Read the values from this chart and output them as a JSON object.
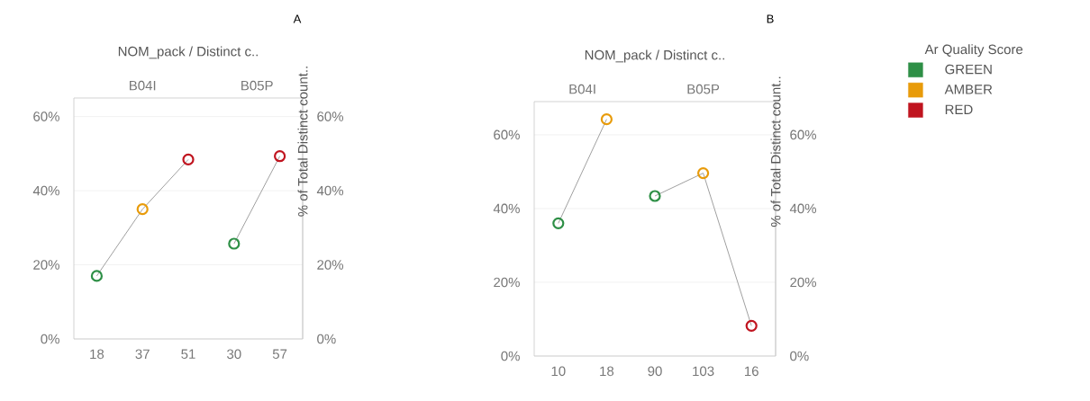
{
  "chart_data": [
    {
      "type": "line",
      "title": "A",
      "xlabel": "NOM_pack / Distinct c..",
      "y2label": "% of Total Distinct count..",
      "annotations": [
        "B04I",
        "B05P"
      ],
      "categories": [
        "18",
        "37",
        "51",
        "30",
        "57"
      ],
      "ylim": [
        0,
        65
      ],
      "yticks": [
        {
          "value": 0,
          "label": "0%"
        },
        {
          "value": 20,
          "label": "20%"
        },
        {
          "value": 40,
          "label": "40%"
        },
        {
          "value": 60,
          "label": "60%"
        }
      ],
      "y2lim": [
        0,
        65
      ],
      "y2ticks": [
        {
          "value": 0,
          "label": "0%"
        },
        {
          "value": 20,
          "label": "20%"
        },
        {
          "value": 40,
          "label": "40%"
        },
        {
          "value": 60,
          "label": "60%"
        }
      ],
      "grid": "y",
      "marker": "circle",
      "series": [
        {
          "marker": "none",
          "color": "#a0a0a0",
          "values": [
            17,
            35,
            48.4,
            null,
            null
          ]
        },
        {
          "marker": "none",
          "color": "#a0a0a0",
          "values": [
            null,
            null,
            null,
            25.7,
            49.3
          ]
        },
        {
          "type": "scatter",
          "color": "#2e8f46",
          "values": [
            17,
            null,
            null,
            25.7,
            null
          ]
        },
        {
          "type": "scatter",
          "color": "#e89b0a",
          "values": [
            null,
            35,
            null,
            null,
            null
          ]
        },
        {
          "type": "scatter",
          "color": "#c0141f",
          "values": [
            null,
            null,
            48.4,
            null,
            49.3
          ]
        }
      ]
    },
    {
      "type": "line",
      "title": "B",
      "xlabel": "NOM_pack / Distinct c..",
      "y2label": "% of Total Distinct count..",
      "annotations": [
        "B04I",
        "B05P"
      ],
      "legend_title": "Ar Quality Score",
      "legend": "right",
      "categories": [
        "10",
        "18",
        "90",
        "103",
        "16"
      ],
      "ylim": [
        0,
        69
      ],
      "yticks": [
        {
          "value": 0,
          "label": "0%"
        },
        {
          "value": 20,
          "label": "20%"
        },
        {
          "value": 40,
          "label": "40%"
        },
        {
          "value": 60,
          "label": "60%"
        }
      ],
      "y2lim": [
        0,
        69
      ],
      "y2ticks": [
        {
          "value": 0,
          "label": "0%"
        },
        {
          "value": 20,
          "label": "20%"
        },
        {
          "value": 40,
          "label": "40%"
        },
        {
          "value": 60,
          "label": "60%"
        }
      ],
      "grid": "y",
      "marker": "circle",
      "series": [
        {
          "marker": "none",
          "color": "#a0a0a0",
          "values": [
            36,
            64.2,
            null,
            null,
            null
          ]
        },
        {
          "marker": "none",
          "color": "#a0a0a0",
          "values": [
            null,
            null,
            43.4,
            49.6,
            8.2
          ]
        },
        {
          "name": "GREEN",
          "type": "scatter",
          "color": "#2e8f46",
          "values": [
            36,
            null,
            43.4,
            null,
            null
          ]
        },
        {
          "name": "AMBER",
          "type": "scatter",
          "color": "#e89b0a",
          "values": [
            null,
            64.2,
            null,
            49.6,
            null
          ]
        },
        {
          "name": "RED",
          "type": "scatter",
          "color": "#c0141f",
          "values": [
            null,
            null,
            null,
            null,
            8.2
          ]
        }
      ]
    }
  ]
}
